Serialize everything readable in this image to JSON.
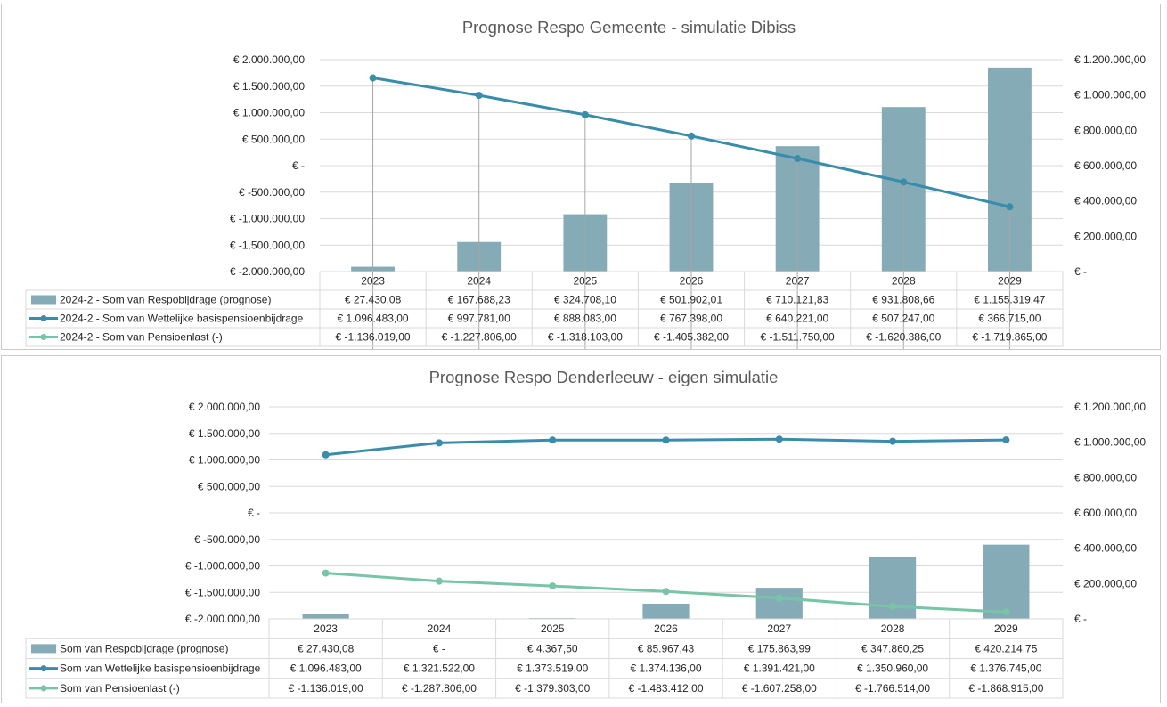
{
  "colors": {
    "respo": "#85abb7",
    "wettelijk": "#3a8cab",
    "pensioen": "#78c4a6",
    "droplines": "#a6a6a6",
    "grid": "#d9d9d9"
  },
  "chart_data": [
    {
      "type": "bar+line",
      "title": "Prognose Respo Gemeente - simulatie Dibiss",
      "categories": [
        "2023",
        "2024",
        "2025",
        "2026",
        "2027",
        "2028",
        "2029"
      ],
      "left_axis": {
        "min": -2000000,
        "max": 2000000,
        "step": 500000,
        "tick_labels": [
          "€ -2.000.000,00",
          "€ -1.500.000,00",
          "€ -1.000.000,00",
          "€ -500.000,00",
          "€ -",
          "€ 500.000,00",
          "€ 1.000.000,00",
          "€ 1.500.000,00",
          "€ 2.000.000,00"
        ]
      },
      "right_axis": {
        "min": 0,
        "max": 1200000,
        "step": 200000,
        "tick_labels": [
          "€ -",
          "€ 200.000,00",
          "€ 400.000,00",
          "€ 600.000,00",
          "€ 800.000,00",
          "€ 1.000.000,00",
          "€ 1.200.000,00"
        ]
      },
      "drop_lines": true,
      "series": [
        {
          "name": "2024-2 - Som van Respobijdrage (prognose)",
          "kind": "bar",
          "axis": "right",
          "color_key": "respo",
          "values": [
            27430.08,
            167688.23,
            324708.1,
            501902.01,
            710121.83,
            931808.66,
            1155319.47
          ],
          "labels": [
            "€ 27.430,08",
            "€ 167.688,23",
            "€ 324.708,10",
            "€ 501.902,01",
            "€ 710.121,83",
            "€ 931.808,66",
            "€ 1.155.319,47"
          ]
        },
        {
          "name": "2024-2 - Som van Wettelijke basispensioenbijdrage",
          "kind": "line",
          "axis": "right",
          "color_key": "wettelijk",
          "values": [
            1096483.0,
            997781.0,
            888083.0,
            767398.0,
            640221.0,
            507247.0,
            366715.0
          ],
          "labels": [
            "€ 1.096.483,00",
            "€ 997.781,00",
            "€ 888.083,00",
            "€ 767.398,00",
            "€ 640.221,00",
            "€ 507.247,00",
            "€ 366.715,00"
          ]
        },
        {
          "name": "2024-2 - Som van Pensioenlast (-)",
          "kind": "line",
          "axis": "right",
          "color_key": "pensioen",
          "values": [
            -1136019.0,
            -1227806.0,
            -1318103.0,
            -1405382.0,
            -1511750.0,
            -1620386.0,
            -1719865.0
          ],
          "labels": [
            "€ -1.136.019,00",
            "€ -1.227.806,00",
            "€ -1.318.103,00",
            "€ -1.405.382,00",
            "€ -1.511.750,00",
            "€ -1.620.386,00",
            "€ -1.719.865,00"
          ]
        }
      ]
    },
    {
      "type": "bar+line",
      "title": "Prognose Respo Denderleeuw - eigen simulatie",
      "categories": [
        "2023",
        "2024",
        "2025",
        "2026",
        "2027",
        "2028",
        "2029"
      ],
      "left_axis": {
        "min": -2000000,
        "max": 2000000,
        "step": 500000,
        "tick_labels": [
          "€ -2.000.000,00",
          "€ -1.500.000,00",
          "€ -1.000.000,00",
          "€ -500.000,00",
          "€ -",
          "€ 500.000,00",
          "€ 1.000.000,00",
          "€ 1.500.000,00",
          "€ 2.000.000,00"
        ]
      },
      "right_axis": {
        "min": 0,
        "max": 1200000,
        "step": 200000,
        "tick_labels": [
          "€ -",
          "€ 200.000,00",
          "€ 400.000,00",
          "€ 600.000,00",
          "€ 800.000,00",
          "€ 1.000.000,00",
          "€ 1.200.000,00"
        ]
      },
      "drop_lines": false,
      "series": [
        {
          "name": "Som van Respobijdrage (prognose)",
          "kind": "bar",
          "axis": "right",
          "color_key": "respo",
          "values": [
            27430.08,
            0,
            4367.5,
            85967.43,
            175863.99,
            347860.25,
            420214.75
          ],
          "labels": [
            "€ 27.430,08",
            "€ -",
            "€ 4.367,50",
            "€ 85.967,43",
            "€ 175.863,99",
            "€ 347.860,25",
            "€ 420.214,75"
          ]
        },
        {
          "name": "Som van Wettelijke basispensioenbijdrage",
          "kind": "line",
          "axis": "left",
          "color_key": "wettelijk",
          "values": [
            1096483.0,
            1321522.0,
            1373519.0,
            1374136.0,
            1391421.0,
            1350960.0,
            1376745.0
          ],
          "labels": [
            "€ 1.096.483,00",
            "€ 1.321.522,00",
            "€ 1.373.519,00",
            "€ 1.374.136,00",
            "€ 1.391.421,00",
            "€ 1.350.960,00",
            "€ 1.376.745,00"
          ]
        },
        {
          "name": "Som van Pensioenlast (-)",
          "kind": "line",
          "axis": "left",
          "color_key": "pensioen",
          "values": [
            -1136019.0,
            -1287806.0,
            -1379303.0,
            -1483412.0,
            -1607258.0,
            -1766514.0,
            -1868915.0
          ],
          "labels": [
            "€ -1.136.019,00",
            "€ -1.287.806,00",
            "€ -1.379.303,00",
            "€ -1.483.412,00",
            "€ -1.607.258,00",
            "€ -1.766.514,00",
            "€ -1.868.915,00"
          ]
        }
      ]
    }
  ]
}
